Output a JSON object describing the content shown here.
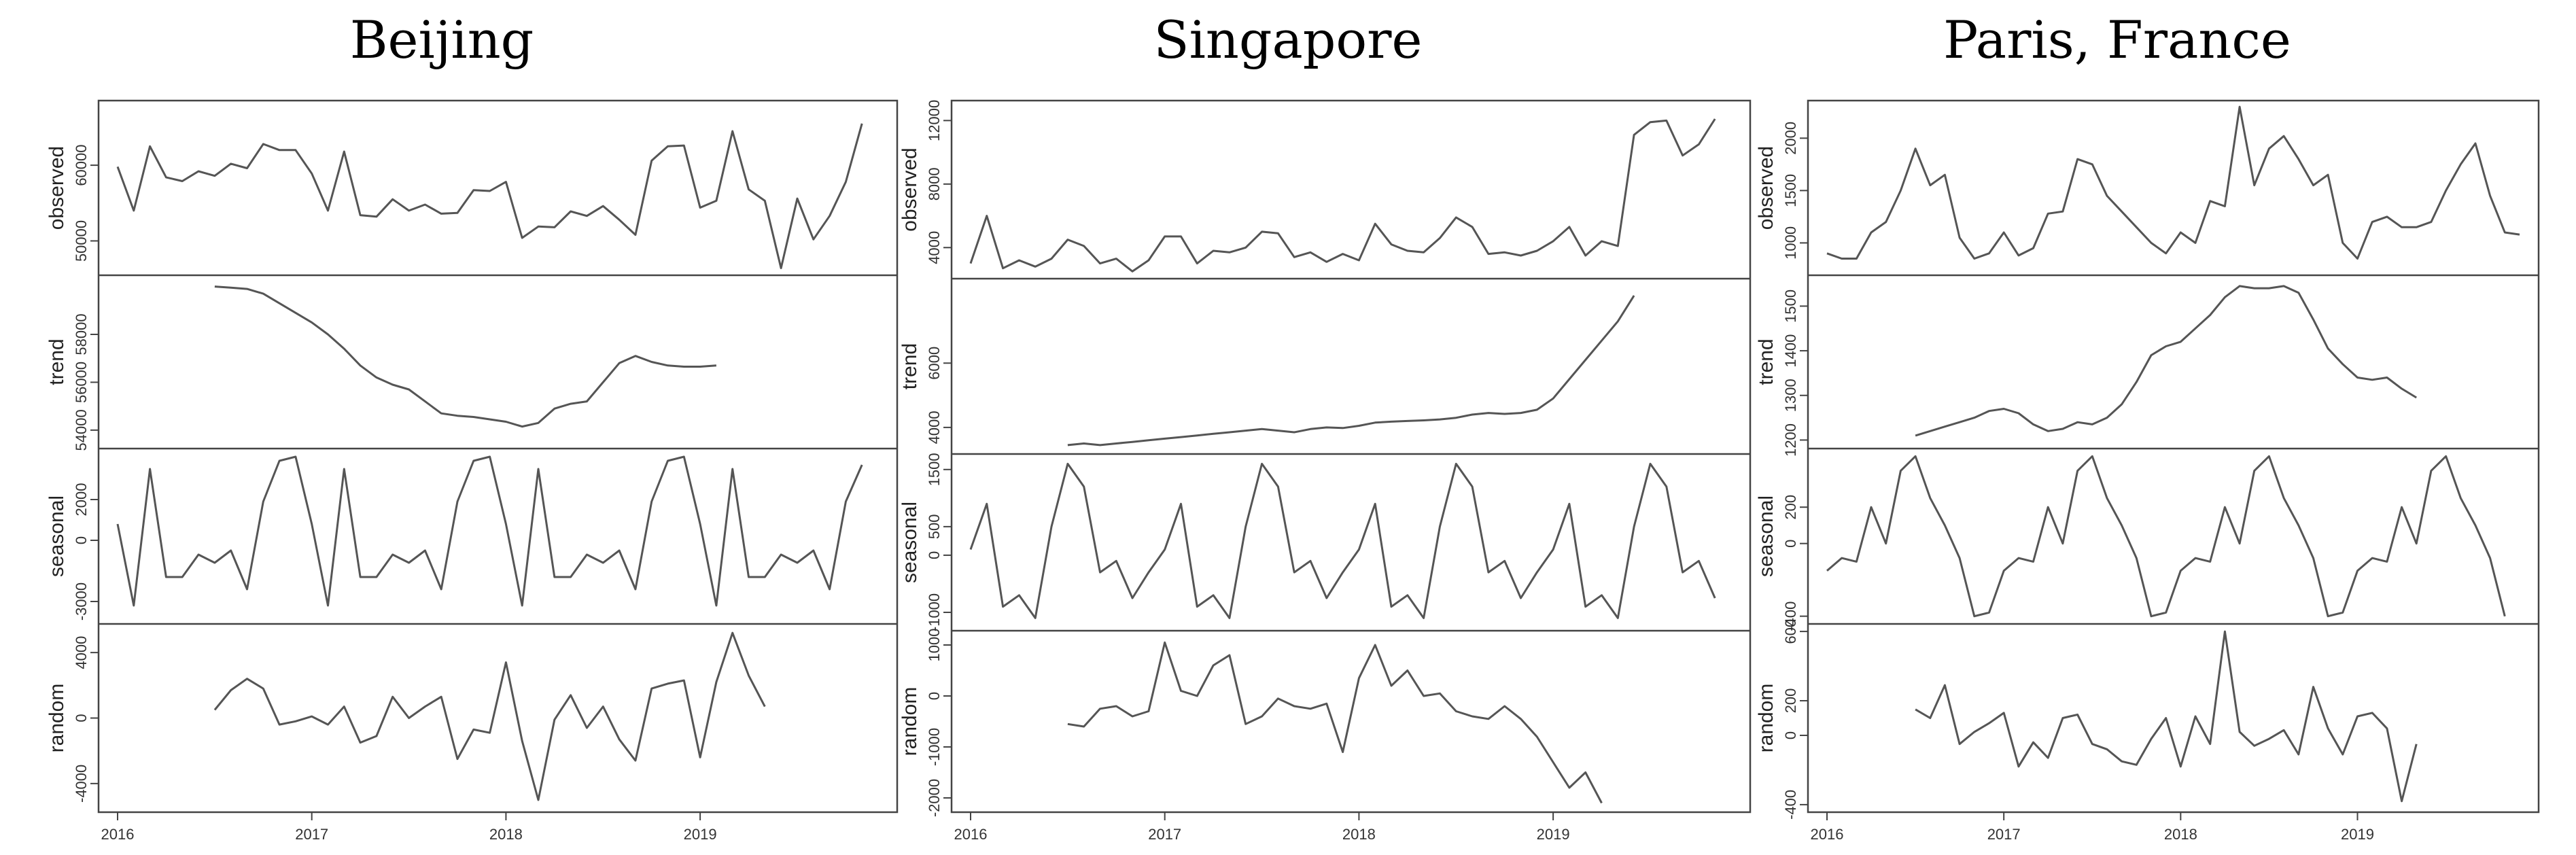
{
  "chart_data": [
    {
      "type": "line",
      "title": "Beijing",
      "x_ticks": [
        "2016",
        "2017",
        "2018",
        "2019"
      ],
      "x_start": 2016,
      "panels": [
        {
          "ylabel": "observed",
          "ylim": [
            46000,
            68000
          ],
          "y_ticks": [
            "50000",
            "60000"
          ],
          "y_tick_values": [
            50000,
            60000
          ],
          "x_start": 2016.0,
          "values": [
            59800,
            54000,
            62500,
            58400,
            57900,
            59200,
            58600,
            60200,
            59600,
            62800,
            62000,
            62000,
            58900,
            54000,
            61800,
            53400,
            53200,
            55500,
            54000,
            54800,
            53600,
            53700,
            56700,
            56600,
            57800,
            50400,
            51900,
            51800,
            53900,
            53300,
            54600,
            52800,
            50800,
            60600,
            62500,
            62600,
            54400,
            55300,
            64500,
            56800,
            55300,
            46400,
            55600,
            50200,
            53300,
            57800,
            65500
          ]
        },
        {
          "ylabel": "trend",
          "ylim": [
            53400,
            60300
          ],
          "y_ticks": [
            "54000",
            "56000",
            "58000"
          ],
          "y_tick_values": [
            54000,
            56000,
            58000
          ],
          "x_start": 2016.5,
          "values": [
            60000,
            59950,
            59900,
            59700,
            59300,
            58900,
            58500,
            58000,
            57400,
            56700,
            56200,
            55900,
            55700,
            55200,
            54700,
            54600,
            54550,
            54450,
            54350,
            54150,
            54300,
            54900,
            55100,
            55200,
            56000,
            56800,
            57100,
            56850,
            56700,
            56650,
            56650,
            56700
          ]
        },
        {
          "ylabel": "seasonal",
          "ylim": [
            -3900,
            4300
          ],
          "y_ticks": [
            "-3000",
            "0",
            "2000"
          ],
          "y_tick_values": [
            -3000,
            0,
            2000
          ],
          "x_start": 2016.0,
          "values": [
            800,
            -3200,
            3500,
            -1800,
            -1800,
            -700,
            -1100,
            -500,
            -2400,
            1900,
            3900,
            4100,
            800,
            -3200,
            3500,
            -1800,
            -1800,
            -700,
            -1100,
            -500,
            -2400,
            1900,
            3900,
            4100,
            800,
            -3200,
            3500,
            -1800,
            -1800,
            -700,
            -1100,
            -500,
            -2400,
            1900,
            3900,
            4100,
            800,
            -3200,
            3500,
            -1800,
            -1800,
            -700,
            -1100,
            -500,
            -2400,
            1900,
            3700
          ]
        },
        {
          "ylabel": "random",
          "ylim": [
            -5500,
            5500
          ],
          "y_ticks": [
            "-4000",
            "0",
            "4000"
          ],
          "y_tick_values": [
            -4000,
            0,
            4000
          ],
          "x_start": 2016.5,
          "values": [
            500,
            1700,
            2400,
            1800,
            -400,
            -200,
            100,
            -400,
            700,
            -1500,
            -1100,
            1300,
            0,
            700,
            1300,
            -2500,
            -700,
            -900,
            3400,
            -1400,
            -5000,
            -100,
            1400,
            -600,
            700,
            -1300,
            -2600,
            1800,
            2100,
            2300,
            -2400,
            2200,
            5200,
            2600,
            700
          ]
        }
      ]
    },
    {
      "type": "line",
      "title": "Singapore",
      "x_ticks": [
        "2016",
        "2017",
        "2018",
        "2019"
      ],
      "x_start": 2016,
      "panels": [
        {
          "ylabel": "observed",
          "ylim": [
            2300,
            13000
          ],
          "y_ticks": [
            "4000",
            "8000",
            "12000"
          ],
          "y_tick_values": [
            4000,
            8000,
            12000
          ],
          "x_start": 2016.0,
          "values": [
            3000,
            6000,
            2700,
            3200,
            2800,
            3300,
            4500,
            4100,
            3000,
            3300,
            2500,
            3200,
            4700,
            4700,
            3000,
            3800,
            3700,
            4000,
            5000,
            4900,
            3400,
            3700,
            3100,
            3600,
            3200,
            5500,
            4200,
            3800,
            3700,
            4600,
            5900,
            5300,
            3600,
            3700,
            3500,
            3800,
            4400,
            5300,
            3500,
            4400,
            4100,
            11100,
            11900,
            12000,
            9800,
            10500,
            12100
          ]
        },
        {
          "ylabel": "trend",
          "ylim": [
            3300,
            8500
          ],
          "y_ticks": [
            "4000",
            "6000"
          ],
          "y_tick_values": [
            4000,
            6000
          ],
          "x_start": 2016.5,
          "values": [
            3450,
            3500,
            3450,
            3500,
            3550,
            3600,
            3650,
            3700,
            3750,
            3800,
            3850,
            3900,
            3950,
            3900,
            3850,
            3950,
            4000,
            3980,
            4050,
            4150,
            4180,
            4200,
            4220,
            4250,
            4300,
            4400,
            4450,
            4420,
            4450,
            4550,
            4900,
            5500,
            6100,
            6700,
            7300,
            8100
          ]
        },
        {
          "ylabel": "seasonal",
          "ylim": [
            -1250,
            1700
          ],
          "y_ticks": [
            "-1000",
            "0",
            "500",
            "1500"
          ],
          "y_tick_values": [
            -1000,
            0,
            500,
            1500
          ],
          "x_start": 2016.0,
          "values": [
            100,
            900,
            -900,
            -700,
            -1100,
            500,
            1600,
            1200,
            -300,
            -100,
            -750,
            -300,
            100,
            900,
            -900,
            -700,
            -1100,
            500,
            1600,
            1200,
            -300,
            -100,
            -750,
            -300,
            100,
            900,
            -900,
            -700,
            -1100,
            500,
            1600,
            1200,
            -300,
            -100,
            -750,
            -300,
            100,
            900,
            -900,
            -700,
            -1100,
            500,
            1600,
            1200,
            -300,
            -100,
            -750
          ]
        },
        {
          "ylabel": "random",
          "ylim": [
            -2200,
            1200
          ],
          "y_ticks": [
            "-2000",
            "-1000",
            "0",
            "1000"
          ],
          "y_tick_values": [
            -2000,
            -1000,
            0,
            1000
          ],
          "x_start": 2016.5,
          "values": [
            -550,
            -600,
            -250,
            -200,
            -400,
            -300,
            1050,
            100,
            0,
            600,
            800,
            -550,
            -400,
            -50,
            -200,
            -250,
            -150,
            -1100,
            350,
            1000,
            200,
            500,
            0,
            50,
            -300,
            -400,
            -450,
            -200,
            -450,
            -800,
            -1300,
            -1800,
            -1500,
            -2100
          ]
        }
      ]
    },
    {
      "type": "line",
      "title": "Paris, France",
      "x_ticks": [
        "2016",
        "2017",
        "2018",
        "2019"
      ],
      "x_start": 2016,
      "panels": [
        {
          "ylabel": "observed",
          "ylim": [
            730,
            2320
          ],
          "y_ticks": [
            "1000",
            "1500",
            "2000"
          ],
          "y_tick_values": [
            1000,
            1500,
            2000
          ],
          "x_start": 2016.0,
          "values": [
            900,
            850,
            850,
            1100,
            1200,
            1500,
            1900,
            1550,
            1650,
            1050,
            850,
            900,
            1100,
            880,
            950,
            1280,
            1300,
            1800,
            1750,
            1450,
            1300,
            1150,
            1000,
            900,
            1100,
            1000,
            1400,
            1350,
            2300,
            1550,
            1900,
            2020,
            1800,
            1550,
            1650,
            1000,
            850,
            1200,
            1250,
            1150,
            1150,
            1200,
            1500,
            1750,
            1950,
            1450,
            1100,
            1080
          ]
        },
        {
          "ylabel": "trend",
          "ylim": [
            1190,
            1560
          ],
          "y_ticks": [
            "1200",
            "1300",
            "1400",
            "1500"
          ],
          "y_tick_values": [
            1200,
            1300,
            1400,
            1500
          ],
          "x_start": 2016.5,
          "values": [
            1210,
            1220,
            1230,
            1240,
            1250,
            1265,
            1270,
            1260,
            1235,
            1220,
            1225,
            1240,
            1235,
            1250,
            1280,
            1330,
            1390,
            1410,
            1420,
            1450,
            1480,
            1520,
            1545,
            1540,
            1540,
            1545,
            1530,
            1470,
            1405,
            1370,
            1340,
            1335,
            1340,
            1315,
            1295
          ]
        },
        {
          "ylabel": "seasonal",
          "ylim": [
            -420,
            500
          ],
          "y_ticks": [
            "-400",
            "0",
            "200"
          ],
          "y_tick_values": [
            -400,
            0,
            200
          ],
          "x_start": 2016.0,
          "values": [
            -150,
            -80,
            -100,
            200,
            0,
            400,
            480,
            250,
            100,
            -80,
            -400,
            -380,
            -150,
            -80,
            -100,
            200,
            0,
            400,
            480,
            250,
            100,
            -80,
            -400,
            -380,
            -150,
            -80,
            -100,
            200,
            0,
            400,
            480,
            250,
            100,
            -80,
            -400,
            -380,
            -150,
            -80,
            -100,
            200,
            0,
            400,
            480,
            250,
            100,
            -80,
            -400
          ]
        },
        {
          "ylabel": "random",
          "ylim": [
            -420,
            620
          ],
          "y_ticks": [
            "-400",
            "0",
            "200",
            "600"
          ],
          "y_tick_values": [
            -400,
            0,
            200,
            600
          ],
          "x_start": 2016.5,
          "values": [
            150,
            100,
            290,
            -50,
            20,
            70,
            130,
            -180,
            -40,
            -130,
            100,
            120,
            -50,
            -80,
            -150,
            -170,
            -20,
            100,
            -180,
            110,
            -50,
            600,
            20,
            -60,
            -20,
            30,
            -110,
            280,
            40,
            -110,
            110,
            130,
            40,
            -380,
            -50
          ]
        }
      ]
    }
  ]
}
